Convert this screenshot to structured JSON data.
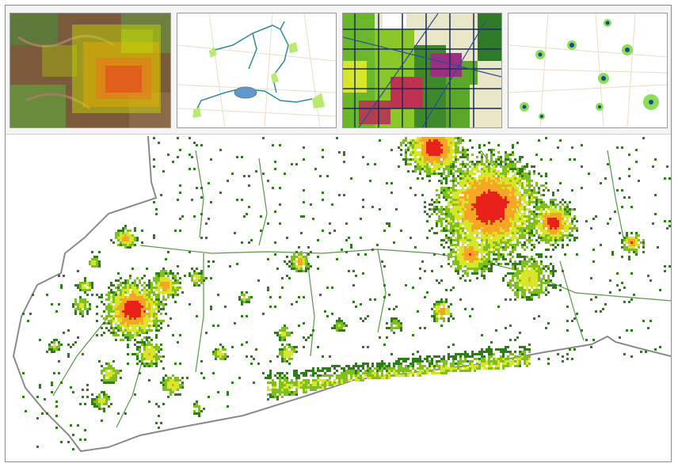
{
  "figure": {
    "thumbnails": [
      {
        "icon": "satellite-heatmap-icon"
      },
      {
        "icon": "route-network-icon"
      },
      {
        "icon": "grid-network-icon"
      },
      {
        "icon": "point-locations-icon"
      }
    ],
    "legend": {
      "colors": [
        "#2e7d1a",
        "#7fbf1f",
        "#d8e62a",
        "#f5a623",
        "#e8211a"
      ]
    }
  }
}
